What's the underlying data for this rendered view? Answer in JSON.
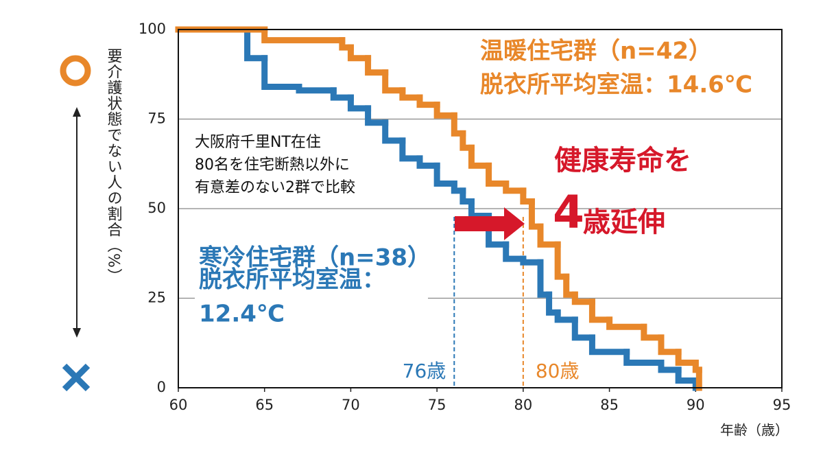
{
  "chart_data": {
    "type": "step",
    "ylabel": "要介護状態でない人の割合（%）",
    "xlabel": "年齢（歳）",
    "xlim": [
      60,
      95
    ],
    "xticks": [
      60,
      65,
      70,
      75,
      80,
      85,
      90,
      95
    ],
    "ylim": [
      0,
      100
    ],
    "yticks": [
      0,
      25,
      50,
      75,
      100
    ],
    "grid": true,
    "series": [
      {
        "name": "寒冷住宅群（n=38）",
        "color": "#2b78b6",
        "detail": [
          "脱衣所平均室温：",
          "12.4℃"
        ],
        "x": [
          60,
          64,
          65,
          67,
          69,
          70,
          71,
          72,
          73,
          74,
          75,
          76,
          76.5,
          77,
          78,
          79,
          80,
          81,
          81.5,
          82,
          83,
          84,
          86,
          88,
          89,
          90
        ],
        "values": [
          100,
          92,
          84,
          83,
          81,
          78,
          74,
          69,
          64,
          62,
          57,
          55,
          52,
          48,
          40,
          36,
          35,
          26,
          21,
          19,
          14,
          10,
          7,
          5,
          2,
          0
        ]
      },
      {
        "name": "温暖住宅群（n=42）",
        "color": "#e8872a",
        "detail": [
          "脱衣所平均室温：14.6℃"
        ],
        "x": [
          60,
          65,
          69.5,
          70,
          71,
          72,
          73,
          74,
          75,
          76,
          76.5,
          77,
          78,
          79,
          80,
          80.5,
          81,
          82,
          82.5,
          83,
          84,
          85,
          87,
          88,
          89,
          90,
          90.2
        ],
        "values": [
          100,
          97,
          95,
          92,
          88,
          83,
          81,
          79,
          76,
          71,
          67,
          62,
          57,
          55,
          52,
          45,
          40,
          31,
          26,
          24,
          19,
          17,
          14,
          10,
          7,
          5,
          0
        ]
      }
    ],
    "note": [
      "大阪府千里NT在住",
      "80名を住宅断熱以外に",
      "有意差のない2群で比較"
    ],
    "headline": [
      "健康寿命を",
      "4",
      "歳延伸"
    ],
    "vlines": [
      {
        "value": 76,
        "label": "76歳",
        "color": "#2b78b6"
      },
      {
        "value": 80,
        "label": "80歳",
        "color": "#e8872a"
      }
    ]
  }
}
